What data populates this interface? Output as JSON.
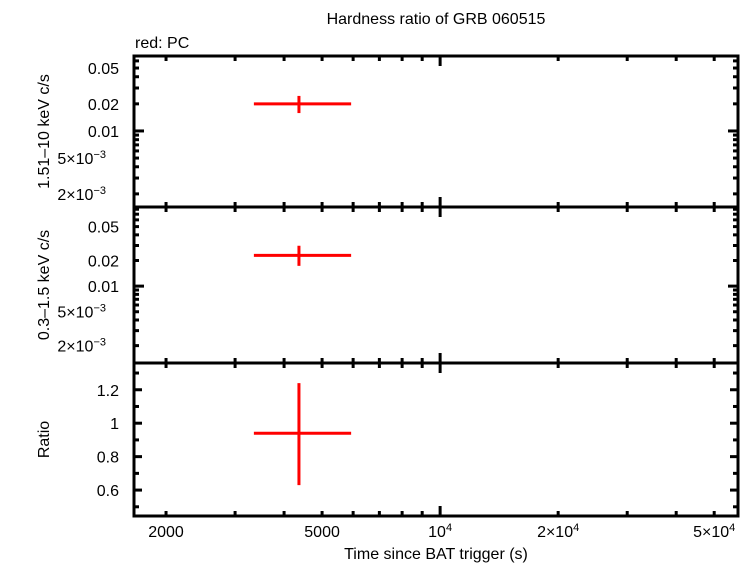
{
  "title": "Hardness ratio of GRB 060515",
  "legend_note": "red: PC",
  "colors": {
    "PC": "#ff0000",
    "axes": "#000000",
    "background": "#ffffff"
  },
  "x_axis": {
    "label": "Time since BAT trigger (s)",
    "scale": "log",
    "range": [
      1657,
      57500
    ],
    "major_ticks": [
      {
        "value": 2000,
        "label": "2000"
      },
      {
        "value": 5000,
        "label": "5000"
      },
      {
        "value": 10000,
        "label": "10",
        "sup": "4"
      },
      {
        "value": 20000,
        "label": "2×10",
        "sup": "4"
      },
      {
        "value": 50000,
        "label": "5×10",
        "sup": "4"
      }
    ],
    "minor_ticks": [
      2000,
      3000,
      4000,
      5000,
      6000,
      7000,
      8000,
      9000,
      10000,
      20000,
      30000,
      40000,
      50000
    ]
  },
  "panels": [
    {
      "name": "hard-band",
      "ylabel": "1.51–10 keV c/s",
      "scale": "log",
      "ylim": [
        0.00143,
        0.068
      ],
      "yticks": [
        {
          "value": 0.05,
          "label": "0.05"
        },
        {
          "value": 0.02,
          "label": "0.02"
        },
        {
          "value": 0.01,
          "label": "0.01"
        },
        {
          "value": 0.005,
          "label": "5×10",
          "sup": "−3"
        },
        {
          "value": 0.002,
          "label": "2×10",
          "sup": "−3"
        }
      ]
    },
    {
      "name": "soft-band",
      "ylabel": "0.3–1.5 keV c/s",
      "scale": "log",
      "ylim": [
        0.00125,
        0.085
      ],
      "yticks": [
        {
          "value": 0.05,
          "label": "0.05"
        },
        {
          "value": 0.02,
          "label": "0.02"
        },
        {
          "value": 0.01,
          "label": "0.01"
        },
        {
          "value": 0.005,
          "label": "5×10",
          "sup": "−3"
        },
        {
          "value": 0.002,
          "label": "2×10",
          "sup": "−3"
        }
      ]
    },
    {
      "name": "ratio",
      "ylabel": "Ratio",
      "scale": "linear",
      "ylim": [
        0.445,
        1.36
      ],
      "yticks": [
        {
          "value": 1.2,
          "label": "1.2"
        },
        {
          "value": 1.0,
          "label": "1"
        },
        {
          "value": 0.8,
          "label": "0.8"
        },
        {
          "value": 0.6,
          "label": "0.6"
        }
      ]
    }
  ],
  "chart_data": {
    "type": "scatter",
    "title": "Hardness ratio of GRB 060515",
    "subtitle": "red: PC",
    "xlabel": "Time since BAT trigger (s)",
    "xscale": "log",
    "xlim": [
      1657,
      57500
    ],
    "grid": false,
    "legend": "text annotation top-left: red: PC",
    "panels": [
      {
        "ylabel": "1.51–10 keV c/s",
        "yscale": "log",
        "ylim": [
          0.00143,
          0.068
        ],
        "series": [
          {
            "name": "PC",
            "color": "#ff0000",
            "points": [
              {
                "x": 4365,
                "x_lo": 3350,
                "x_hi": 5930,
                "y": 0.02,
                "y_lo": 0.0158,
                "y_hi": 0.0245
              }
            ]
          }
        ]
      },
      {
        "ylabel": "0.3–1.5 keV c/s",
        "yscale": "log",
        "ylim": [
          0.00125,
          0.085
        ],
        "series": [
          {
            "name": "PC",
            "color": "#ff0000",
            "points": [
              {
                "x": 4365,
                "x_lo": 3350,
                "x_hi": 5930,
                "y": 0.023,
                "y_lo": 0.0173,
                "y_hi": 0.0298
              }
            ]
          }
        ]
      },
      {
        "ylabel": "Ratio",
        "yscale": "linear",
        "ylim": [
          0.445,
          1.36
        ],
        "series": [
          {
            "name": "PC",
            "color": "#ff0000",
            "points": [
              {
                "x": 4365,
                "x_lo": 3350,
                "x_hi": 5930,
                "y": 0.94,
                "y_lo": 0.63,
                "y_hi": 1.24
              }
            ]
          }
        ]
      }
    ]
  }
}
